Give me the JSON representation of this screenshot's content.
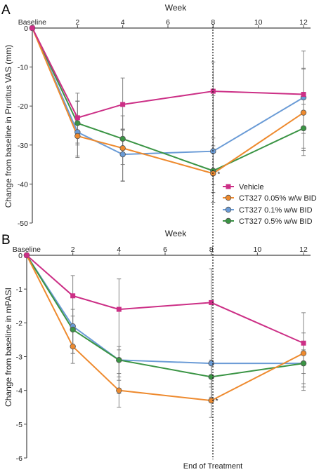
{
  "chart_data": [
    {
      "type": "line",
      "panel_label": "A",
      "top_axis_label": "Week",
      "ylabel": "Change from baseline in Pruritus VAS (mm)",
      "x_ticks": [
        "Baseline",
        "2",
        "4",
        "6",
        "8",
        "10",
        "12"
      ],
      "x": [
        0,
        2,
        4,
        8,
        12
      ],
      "xlim": [
        0,
        12
      ],
      "ylim": [
        -50,
        0
      ],
      "y_ticks": [
        "0",
        "-10",
        "-20",
        "-30",
        "-40",
        "-50"
      ],
      "legend_position": "bottom-right",
      "series": [
        {
          "name": "Vehicle",
          "values": [
            0,
            -23,
            -19.6,
            -16.2,
            -17
          ],
          "error_low": [
            0,
            -29.5,
            -26,
            -31,
            -27
          ],
          "error_high": [
            0,
            -16.7,
            -12.8,
            -8.7,
            -5.9
          ]
        },
        {
          "name": "CT327 0.05% w/w BID",
          "values": [
            0,
            -27.7,
            -30.8,
            -37.3,
            -21.7
          ],
          "error_low": [
            0,
            -33.2,
            -39.2,
            -44.7,
            -32.7
          ],
          "error_high": [
            0,
            -22.5,
            -22.5,
            -28.2,
            -10.5
          ]
        },
        {
          "name": "CT327 0.1% w/w BID",
          "values": [
            0,
            -26.7,
            -32.4,
            -31.6,
            -17.8
          ],
          "error_low": [
            0,
            -32.8,
            -39.3,
            -40.2,
            -30.8
          ],
          "error_high": [
            0,
            -18.8,
            -26.3,
            -17.3,
            -10.3
          ]
        },
        {
          "name": "CT327 0.5% w/w BID",
          "values": [
            0,
            -24.4,
            -28.4,
            -36.6,
            -25.7
          ],
          "error_low": [
            0,
            -30,
            -35,
            -42.2,
            -31.4
          ],
          "error_high": [
            0,
            -18.7,
            -25.9,
            -30.2,
            -19.5
          ]
        }
      ],
      "annotations": [
        {
          "text": "*",
          "x": 8,
          "y": -37.3
        }
      ]
    },
    {
      "type": "line",
      "panel_label": "B",
      "top_axis_label": "Week",
      "ylabel": "Change from baseline in mPASI",
      "x_ticks": [
        "Baseline",
        "2",
        "4",
        "6",
        "8",
        "10",
        "12"
      ],
      "x": [
        0,
        2,
        4,
        8,
        12
      ],
      "xlim": [
        0,
        12
      ],
      "ylim": [
        -6,
        0
      ],
      "y_ticks": [
        "0",
        "-1",
        "-2",
        "-3",
        "-4",
        "-5",
        "-6"
      ],
      "series": [
        {
          "name": "Vehicle",
          "values": [
            0,
            -1.2,
            -1.6,
            -1.4,
            -2.6
          ],
          "error_low": [
            0,
            -2.9,
            -4.1,
            -4.3,
            -4
          ],
          "error_high": [
            0,
            -0.6,
            -0.7,
            -0.4,
            -1.7
          ]
        },
        {
          "name": "CT327 0.05% w/w BID",
          "values": [
            0,
            -2.7,
            -4,
            -4.3,
            -2.9
          ],
          "error_low": [
            0,
            -3.2,
            -4.5,
            -4.8,
            -3.5
          ],
          "error_high": [
            0,
            -2.2,
            -3.5,
            -3.8,
            -2.3
          ]
        },
        {
          "name": "CT327 0.1% w/w BID",
          "values": [
            0,
            -2.1,
            -3.1,
            -3.2,
            -3.2
          ],
          "error_low": [
            0,
            -2.9,
            -3.7,
            -3.9,
            -3.9
          ],
          "error_high": [
            0,
            -1.6,
            -2.7,
            -2.5,
            -2.6
          ]
        },
        {
          "name": "CT327 0.5% w/w BID",
          "values": [
            0,
            -2.2,
            -3.1,
            -3.6,
            -3.2
          ],
          "error_low": [
            0,
            -2.9,
            -3.6,
            -4.2,
            -3.8
          ],
          "error_high": [
            0,
            -1.8,
            -2.8,
            -3.1,
            -2.8
          ]
        }
      ],
      "annotations": [
        {
          "text": "*",
          "x": 8,
          "y": -4.3
        }
      ]
    }
  ],
  "end_of_treatment_label": "End of Treatment",
  "series_colors": [
    "#cc2f86",
    "#ee8a2e",
    "#6a9bd6",
    "#3a9444"
  ],
  "series_markers": [
    "square",
    "circle",
    "circle",
    "circle"
  ]
}
